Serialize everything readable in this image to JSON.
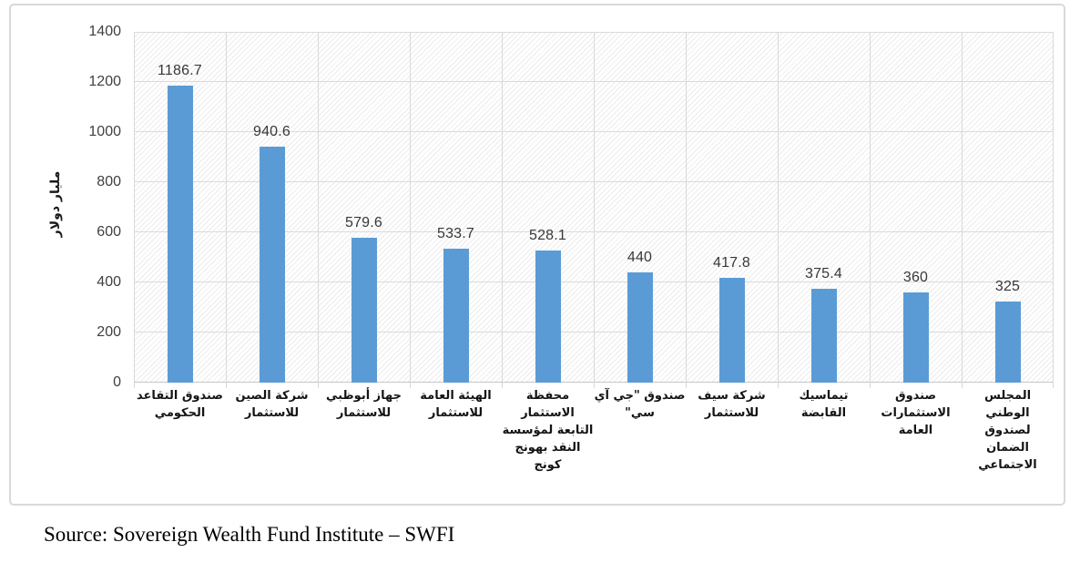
{
  "chart_data": {
    "type": "bar",
    "title": "",
    "xlabel": "",
    "ylabel": "مليار دولار",
    "ylim": [
      0,
      1400
    ],
    "y_ticks": [
      "0",
      "200",
      "400",
      "600",
      "800",
      "1000",
      "1200",
      "1400"
    ],
    "grid": true,
    "legend_position": "none",
    "bar_color": "#5B9BD5",
    "gridline_color": "#D9D9D9",
    "plot_background": "diagonal-hatch",
    "categories": [
      "صندوق التقاعد الحكومي",
      "شركة الصين للاستثمار",
      "جهاز أبوظبي للاستثمار",
      "الهيئة العامة للاستثمار",
      "محفظة الاستثمار التابعة لمؤسسة النقد بهونج كونج",
      "صندوق \"جي آي سي\"",
      "شركة سيف للاستثمار",
      "تيماسيك القابضة",
      "صندوق الاستثمارات العامة",
      "المجلس الوطني لصندوق الضمان الاجتماعي"
    ],
    "values": [
      1186.7,
      940.6,
      579.6,
      533.7,
      528.1,
      440,
      417.8,
      375.4,
      360,
      325
    ],
    "value_labels": [
      "1186.7",
      "940.6",
      "579.6",
      "533.7",
      "528.1",
      "440",
      "417.8",
      "375.4",
      "360",
      "325"
    ]
  },
  "source_note": "Source: Sovereign Wealth Fund Institute – SWFI"
}
